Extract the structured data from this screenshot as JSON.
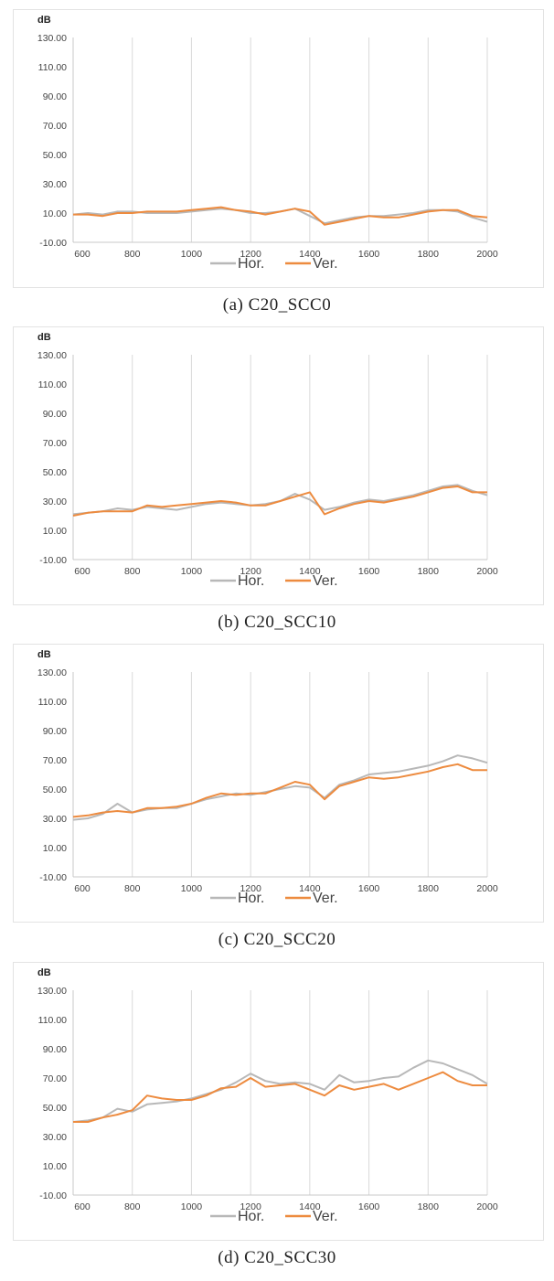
{
  "legend_labels": [
    "Hor.",
    "Ver."
  ],
  "colors": {
    "hor": "#b8b8b8",
    "ver": "#ed8b3f",
    "grid": "#d9d9d9"
  },
  "chart_data": [
    {
      "type": "line",
      "caption": "(a) C20_SCC0",
      "ylabel": "dB",
      "xlim": [
        600,
        2000
      ],
      "ylim": [
        -10,
        130
      ],
      "x_ticks": [
        "600",
        "800",
        "1000",
        "1200",
        "1400",
        "1600",
        "1800",
        "2000"
      ],
      "y_ticks": [
        "-10.00",
        "10.00",
        "30.00",
        "50.00",
        "70.00",
        "90.00",
        "110.00",
        "130.00"
      ],
      "grid": true,
      "legend": "bottom",
      "x": [
        600,
        650,
        700,
        750,
        800,
        850,
        900,
        950,
        1000,
        1050,
        1100,
        1150,
        1200,
        1250,
        1300,
        1350,
        1400,
        1450,
        1500,
        1550,
        1600,
        1650,
        1700,
        1750,
        1800,
        1850,
        1900,
        1950,
        2000
      ],
      "series": [
        {
          "name": "Hor.",
          "values": [
            9,
            10,
            9,
            11,
            11,
            10,
            10,
            10,
            11,
            12,
            13,
            12,
            10,
            10,
            11,
            13,
            8,
            3,
            5,
            7,
            8,
            8,
            9,
            10,
            12,
            12,
            11,
            7,
            4
          ]
        },
        {
          "name": "Ver.",
          "values": [
            9,
            9,
            8,
            10,
            10,
            11,
            11,
            11,
            12,
            13,
            14,
            12,
            11,
            9,
            11,
            13,
            11,
            2,
            4,
            6,
            8,
            7,
            7,
            9,
            11,
            12,
            12,
            8,
            7
          ]
        }
      ]
    },
    {
      "type": "line",
      "caption": "(b) C20_SCC10",
      "ylabel": "dB",
      "xlim": [
        600,
        2000
      ],
      "ylim": [
        -10,
        130
      ],
      "x_ticks": [
        "600",
        "800",
        "1000",
        "1200",
        "1400",
        "1600",
        "1800",
        "2000"
      ],
      "y_ticks": [
        "-10.00",
        "10.00",
        "30.00",
        "50.00",
        "70.00",
        "90.00",
        "110.00",
        "130.00"
      ],
      "grid": true,
      "legend": "bottom",
      "x": [
        600,
        650,
        700,
        750,
        800,
        850,
        900,
        950,
        1000,
        1050,
        1100,
        1150,
        1200,
        1250,
        1300,
        1350,
        1400,
        1450,
        1500,
        1550,
        1600,
        1650,
        1700,
        1750,
        1800,
        1850,
        1900,
        1950,
        2000
      ],
      "series": [
        {
          "name": "Hor.",
          "values": [
            21,
            22,
            23,
            25,
            24,
            26,
            25,
            24,
            26,
            28,
            29,
            28,
            27,
            28,
            30,
            35,
            31,
            24,
            26,
            29,
            31,
            30,
            32,
            34,
            37,
            40,
            41,
            37,
            34
          ]
        },
        {
          "name": "Ver.",
          "values": [
            20,
            22,
            23,
            23,
            23,
            27,
            26,
            27,
            28,
            29,
            30,
            29,
            27,
            27,
            30,
            33,
            36,
            21,
            25,
            28,
            30,
            29,
            31,
            33,
            36,
            39,
            40,
            36,
            36
          ]
        }
      ]
    },
    {
      "type": "line",
      "caption": "(c) C20_SCC20",
      "ylabel": "dB",
      "xlim": [
        600,
        2000
      ],
      "ylim": [
        -10,
        130
      ],
      "x_ticks": [
        "600",
        "800",
        "1000",
        "1200",
        "1400",
        "1600",
        "1800",
        "2000"
      ],
      "y_ticks": [
        "-10.00",
        "10.00",
        "30.00",
        "50.00",
        "70.00",
        "90.00",
        "110.00",
        "130.00"
      ],
      "grid": true,
      "legend": "bottom",
      "x": [
        600,
        650,
        700,
        750,
        800,
        850,
        900,
        950,
        1000,
        1050,
        1100,
        1150,
        1200,
        1250,
        1300,
        1350,
        1400,
        1450,
        1500,
        1550,
        1600,
        1650,
        1700,
        1750,
        1800,
        1850,
        1900,
        1950,
        2000
      ],
      "series": [
        {
          "name": "Hor.",
          "values": [
            29,
            30,
            33,
            40,
            34,
            36,
            37,
            37,
            40,
            43,
            45,
            47,
            46,
            48,
            50,
            52,
            51,
            44,
            53,
            56,
            60,
            61,
            62,
            64,
            66,
            69,
            73,
            71,
            68
          ]
        },
        {
          "name": "Ver.",
          "values": [
            31,
            32,
            34,
            35,
            34,
            37,
            37,
            38,
            40,
            44,
            47,
            46,
            47,
            47,
            51,
            55,
            53,
            43,
            52,
            55,
            58,
            57,
            58,
            60,
            62,
            65,
            67,
            63,
            63
          ]
        }
      ]
    },
    {
      "type": "line",
      "caption": "(d) C20_SCC30",
      "ylabel": "dB",
      "xlim": [
        600,
        2000
      ],
      "ylim": [
        -10,
        130
      ],
      "x_ticks": [
        "600",
        "800",
        "1000",
        "1200",
        "1400",
        "1600",
        "1800",
        "2000"
      ],
      "y_ticks": [
        "-10.00",
        "10.00",
        "30.00",
        "50.00",
        "70.00",
        "90.00",
        "110.00",
        "130.00"
      ],
      "grid": true,
      "legend": "bottom",
      "x": [
        600,
        650,
        700,
        750,
        800,
        850,
        900,
        950,
        1000,
        1050,
        1100,
        1150,
        1200,
        1250,
        1300,
        1350,
        1400,
        1450,
        1500,
        1550,
        1600,
        1650,
        1700,
        1750,
        1800,
        1850,
        1900,
        1950,
        2000
      ],
      "series": [
        {
          "name": "Hor.",
          "values": [
            40,
            41,
            43,
            49,
            47,
            52,
            53,
            54,
            56,
            59,
            62,
            67,
            73,
            68,
            66,
            67,
            66,
            62,
            72,
            67,
            68,
            70,
            71,
            77,
            82,
            80,
            76,
            72,
            66
          ]
        },
        {
          "name": "Ver.",
          "values": [
            40,
            40,
            43,
            45,
            48,
            58,
            56,
            55,
            55,
            58,
            63,
            64,
            70,
            64,
            65,
            66,
            62,
            58,
            65,
            62,
            64,
            66,
            62,
            66,
            70,
            74,
            68,
            65,
            65
          ]
        }
      ]
    }
  ]
}
